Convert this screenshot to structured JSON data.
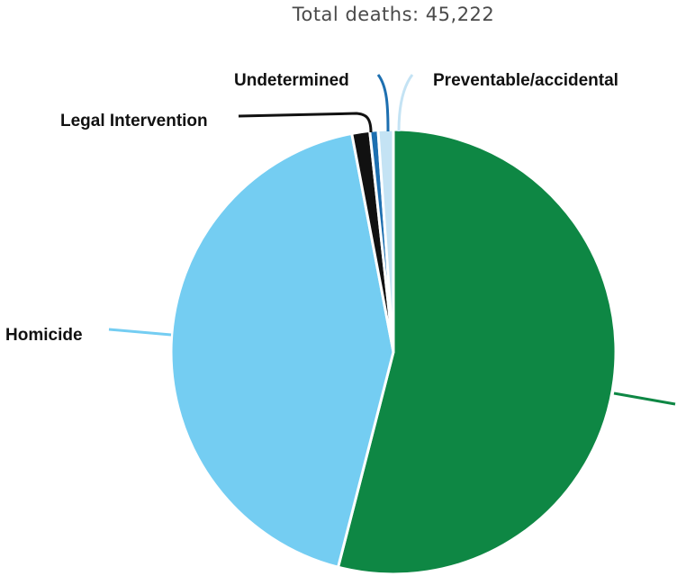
{
  "chart_data": {
    "type": "pie",
    "title": "Total deaths: 45,222",
    "slices": [
      {
        "label": "",
        "value": 54.0,
        "color": "#0e8744"
      },
      {
        "label": "Homicide",
        "value": 43.0,
        "color": "#74cdf2"
      },
      {
        "label": "Legal Intervention",
        "value": 1.3,
        "color": "#111111"
      },
      {
        "label": "Undetermined",
        "value": 0.6,
        "color": "#1d6fb0"
      },
      {
        "label": "Preventable/accidental",
        "value": 1.1,
        "color": "#c4e3f4"
      }
    ]
  }
}
